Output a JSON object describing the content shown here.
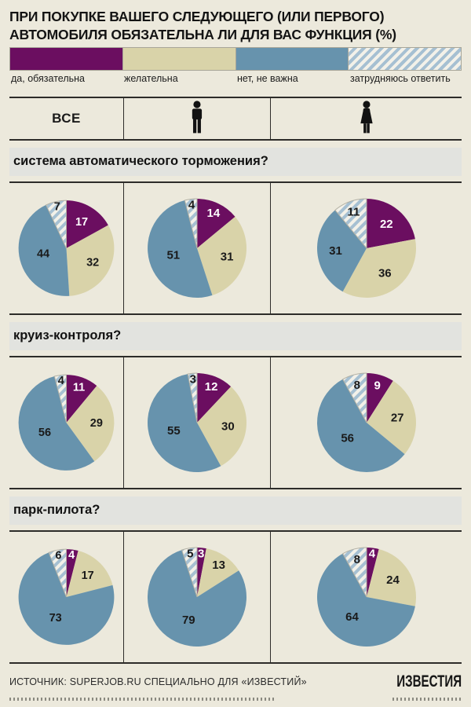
{
  "title": "ПРИ ПОКУПКЕ ВАШЕГО СЛЕДУЮЩЕГО (ИЛИ ПЕРВОГО) АВТОМОБИЛЯ ОБЯЗАТЕЛЬНА ЛИ ДЛЯ ВАС ФУНКЦИЯ (%)",
  "chart_data": {
    "type": "pie",
    "legend": [
      {
        "label": "да, обязательна",
        "color": "#6b0e60",
        "pattern": "solid"
      },
      {
        "label": "желательна",
        "color": "#d9d3a9",
        "pattern": "solid"
      },
      {
        "label": "нет, не важна",
        "color": "#6793ad",
        "pattern": "solid"
      },
      {
        "label": "затрудняюсь ответить",
        "color": "#a6c0d2",
        "pattern": "diagonal-hatch",
        "pattern_bg": "#f3f1e9"
      }
    ],
    "label_colors": [
      "#ffffff",
      "#1a1a1a",
      "#1a1a1a",
      "#1a1a1a"
    ],
    "hatch": {
      "stripe": "#a6c0d2",
      "bg": "#f3f1e9"
    },
    "columns": [
      {
        "label": "ВСЕ",
        "icon": ""
      },
      {
        "label": "",
        "icon": "male"
      },
      {
        "label": "",
        "icon": "female"
      }
    ],
    "rows": [
      {
        "question": "система автоматического торможения?",
        "pies": [
          [
            17,
            32,
            44,
            7
          ],
          [
            14,
            31,
            51,
            4
          ],
          [
            22,
            36,
            31,
            11
          ]
        ]
      },
      {
        "question": "круиз-контроля?",
        "pies": [
          [
            11,
            29,
            56,
            4
          ],
          [
            12,
            30,
            55,
            3
          ],
          [
            9,
            27,
            56,
            8
          ]
        ]
      },
      {
        "question": "парк-пилота?",
        "pies": [
          [
            4,
            17,
            73,
            6
          ],
          [
            3,
            13,
            79,
            5
          ],
          [
            4,
            24,
            64,
            8
          ]
        ]
      }
    ]
  },
  "footer": {
    "source": "ИСТОЧНИК: SUPERJOB.RU СПЕЦИАЛЬНО ДЛЯ «ИЗВЕСТИЙ»",
    "logo": "ИЗВЕСТИЯ"
  }
}
